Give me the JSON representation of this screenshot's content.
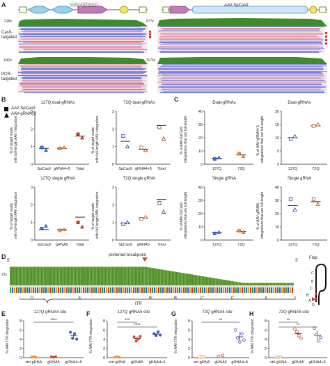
{
  "panelA": {
    "label": "A",
    "left_construct": "AAV-gRNA4+5",
    "right_construct": "AAV-SpCas9",
    "cov_left_top": "218x",
    "cov_right_top": "577x",
    "cov_left_bottom": "642x",
    "cov_right_bottom": "1176x",
    "row1": "Cas9-\ntargeted",
    "row2": "PCR-\ntargeted"
  },
  "panelB": {
    "label": "B",
    "legend": [
      "AAV-SpCas9",
      "AAV-gRNA(s)"
    ],
    "charts": [
      {
        "title": "127Q dual-gRNAs",
        "ylabel": "% of target reads\nwith full-length AAV integration"
      },
      {
        "title": "72Q dual-gRNAs",
        "ylabel": "% of target reads\nwith full-length AAV integration"
      },
      {
        "title": "127Q single gRNA",
        "ylabel": "% of target reads\nwith full-length AAV integration"
      },
      {
        "title": "72Q single gRNA",
        "ylabel": "% of target reads\nwith full-length AAV integration"
      }
    ]
  },
  "panelC": {
    "label": "C",
    "charts": [
      {
        "title": "Dual-gRNAs",
        "ylabel": "% of AAV-SpCas9\nintegrations that are full-length"
      },
      {
        "title": "Dual-gRNAs",
        "ylabel": "% of AAV-gRNA4+5\nintegrations that are full-length"
      },
      {
        "title": "Single gRNA",
        "ylabel": "% of AAV-SpCas9\nintegrations that are full-length"
      },
      {
        "title": "Single gRNA",
        "ylabel": "% of AAV-gRNA5\nintegrations that are full-length"
      }
    ]
  },
  "panelD": {
    "label": "D",
    "five": "5'",
    "three": "3'",
    "depth": "21x",
    "breakpoint": "preferred breakpoint",
    "segments": [
      "D",
      "A'",
      "B'",
      "B",
      "C'",
      "C",
      "A"
    ],
    "itr": "ITR",
    "flop": "Flop",
    "hairpin_letters": [
      "C",
      "B",
      "C'",
      "B'",
      "A",
      "D"
    ]
  },
  "panelsEH": [
    {
      "label": "E",
      "title": "127Q gRNA4 site",
      "ylabel": "% AAV ITR integration",
      "sig": [
        "****"
      ]
    },
    {
      "label": "F",
      "title": "127Q gRNA5 site",
      "ylabel": "% AAV ITR integration",
      "sig": [
        "***",
        "****"
      ]
    },
    {
      "label": "G",
      "title": "72Q gRNA4 site",
      "ylabel": "% AAV ITR integration",
      "sig": [
        "**"
      ]
    },
    {
      "label": "H",
      "title": "72Q gRNA5 site",
      "ylabel": "% AAV ITR integration",
      "sig": [
        "**",
        "**"
      ]
    }
  ],
  "chart_data": [
    {
      "type": "scatter",
      "panel": "B",
      "title": "127Q dual-gRNAs",
      "categories": [
        "SpCas9",
        "gRNA4+5",
        "Total"
      ],
      "ylim": [
        0,
        3
      ],
      "yticks": [
        0,
        1,
        2,
        3
      ],
      "series": [
        {
          "name": "AAV-SpCas9",
          "values": [
            0.95,
            0.9,
            1.7
          ]
        },
        {
          "name": "AAV-gRNA(s)",
          "values": [
            0.8,
            0.95,
            1.5
          ]
        }
      ],
      "means": [
        0.9,
        0.9,
        1.6
      ]
    },
    {
      "type": "scatter",
      "panel": "B",
      "title": "72Q dual-gRNAs",
      "categories": [
        "SpCas9",
        "gRNA4+5",
        "Total"
      ],
      "ylim": [
        0,
        3
      ],
      "yticks": [
        0,
        1,
        2,
        3
      ],
      "series": [
        {
          "name": "AAV-SpCas9",
          "values": [
            1.6,
            0.95,
            2.1
          ]
        },
        {
          "name": "AAV-gRNA(s)",
          "values": [
            1.0,
            0.8,
            1.45
          ]
        }
      ],
      "means": [
        1.3,
        0.85,
        2.2
      ]
    },
    {
      "type": "scatter",
      "panel": "B",
      "title": "127Q single gRNA",
      "categories": [
        "SpCas9",
        "gRNA5",
        "Total"
      ],
      "ylim": [
        0,
        3
      ],
      "yticks": [
        0,
        1,
        2,
        3
      ],
      "series": [
        {
          "name": "AAV-SpCas9",
          "values": [
            0.65,
            0.55,
            1.0
          ]
        },
        {
          "name": "AAV-gRNA(s)",
          "values": [
            0.8,
            0.6,
            0.75
          ]
        }
      ],
      "means": [
        0.6,
        0.6,
        1.3
      ]
    },
    {
      "type": "scatter",
      "panel": "B",
      "title": "72Q single gRNA",
      "categories": [
        "SpCas9",
        "gRNA5",
        "Total"
      ],
      "ylim": [
        0,
        3
      ],
      "yticks": [
        0,
        1,
        2,
        3
      ],
      "series": [
        {
          "name": "AAV-SpCas9",
          "values": [
            0.9,
            1.2,
            2.1
          ]
        },
        {
          "name": "AAV-gRNA(s)",
          "values": [
            1.0,
            1.3,
            1.6
          ]
        }
      ],
      "means": [
        0.95,
        1.25,
        2.3
      ]
    },
    {
      "type": "scatter",
      "panel": "C",
      "title": "Dual-gRNAs",
      "categories": [
        "127Q",
        "72Q"
      ],
      "ylim": [
        0,
        40
      ],
      "yticks": [
        0,
        10,
        20,
        30,
        40
      ],
      "series": [
        {
          "name": "AAV-SpCas9",
          "values": [
            4,
            8
          ]
        },
        {
          "name": "AAV-gRNA(s)",
          "values": [
            5,
            6
          ]
        }
      ],
      "means": [
        4.5,
        7
      ]
    },
    {
      "type": "scatter",
      "panel": "C",
      "title": "Dual-gRNAs",
      "categories": [
        "127Q",
        "72Q"
      ],
      "ylim": [
        0,
        20
      ],
      "yticks": [
        0,
        5,
        10,
        15,
        20
      ],
      "series": [
        {
          "name": "AAV-SpCas9",
          "values": [
            9.5,
            14.5
          ]
        },
        {
          "name": "AAV-gRNA(s)",
          "values": [
            10.5,
            15
          ]
        }
      ],
      "means": [
        10,
        14.5
      ]
    },
    {
      "type": "scatter",
      "panel": "C",
      "title": "Single gRNA",
      "categories": [
        "127Q",
        "72Q"
      ],
      "ylim": [
        0,
        40
      ],
      "yticks": [
        0,
        10,
        20,
        30,
        40
      ],
      "series": [
        {
          "name": "AAV-SpCas9",
          "values": [
            5,
            7
          ]
        },
        {
          "name": "AAV-gRNA(s)",
          "values": [
            6,
            6
          ]
        }
      ],
      "means": [
        5.5,
        6.5
      ]
    },
    {
      "type": "scatter",
      "panel": "C",
      "title": "Single gRNA",
      "categories": [
        "127Q",
        "72Q"
      ],
      "ylim": [
        0,
        40
      ],
      "yticks": [
        0,
        10,
        20,
        30,
        40
      ],
      "series": [
        {
          "name": "AAV-SpCas9",
          "values": [
            31,
            31
          ]
        },
        {
          "name": "AAV-gRNA(s)",
          "values": [
            23,
            27
          ]
        }
      ],
      "means": [
        26,
        29
      ]
    },
    {
      "type": "scatter",
      "panel": "E",
      "title": "127Q gRNA4 site",
      "categories": [
        "ctrl-gRNA",
        "gRNA5",
        "gRNA4+5"
      ],
      "ylim": [
        0,
        8
      ],
      "yticks": [
        0,
        2,
        4,
        6,
        8
      ],
      "groups": [
        [
          0.1,
          0.2,
          0.1
        ],
        [
          0.2,
          0.1,
          0.2
        ],
        [
          5.5,
          4.2,
          5.2,
          4.0
        ]
      ],
      "colors": [
        "#e59a3a",
        "#d9463b",
        "#3b5bbf"
      ]
    },
    {
      "type": "scatter",
      "panel": "F",
      "title": "127Q gRNA5 site",
      "categories": [
        "ctrl-gRNA",
        "gRNA5",
        "gRNA4+5"
      ],
      "ylim": [
        0,
        8
      ],
      "yticks": [
        0,
        2,
        4,
        6,
        8
      ],
      "groups": [
        [
          0.1,
          0.2,
          0.1
        ],
        [
          4.5,
          3.6,
          4.0,
          4.6
        ],
        [
          5.2,
          4.8,
          5.6,
          4.9
        ]
      ],
      "colors": [
        "#e59a3a",
        "#d9463b",
        "#3b5bbf"
      ]
    },
    {
      "type": "scatter",
      "panel": "G",
      "title": "72Q gRNA4 site",
      "categories": [
        "ctrl-gRNA",
        "gRNA5",
        "gRNA4+5"
      ],
      "ylim": [
        0,
        8
      ],
      "yticks": [
        0,
        2,
        4,
        6,
        8
      ],
      "groups": [
        [
          0.1,
          0.1,
          0.2
        ],
        [
          0.3,
          0.2,
          0.5
        ],
        [
          6.0,
          4.2,
          3.4,
          5.2,
          3.8
        ]
      ],
      "colors": [
        "#e59a3a",
        "#d9463b",
        "#3b5bbf"
      ]
    },
    {
      "type": "scatter",
      "panel": "H",
      "title": "72Q gRNA5 site",
      "categories": [
        "ctrl-gRNA",
        "gRNA5",
        "gRNA4+5"
      ],
      "ylim": [
        0,
        8
      ],
      "yticks": [
        0,
        2,
        4,
        6,
        8
      ],
      "groups": [
        [
          0.1,
          0.1,
          0.2
        ],
        [
          6.2,
          5.6,
          4.8,
          4.2
        ],
        [
          6.4,
          5.0,
          3.6,
          4.4
        ]
      ],
      "colors": [
        "#e59a3a",
        "#d9463b",
        "#3b5bbf"
      ]
    }
  ]
}
